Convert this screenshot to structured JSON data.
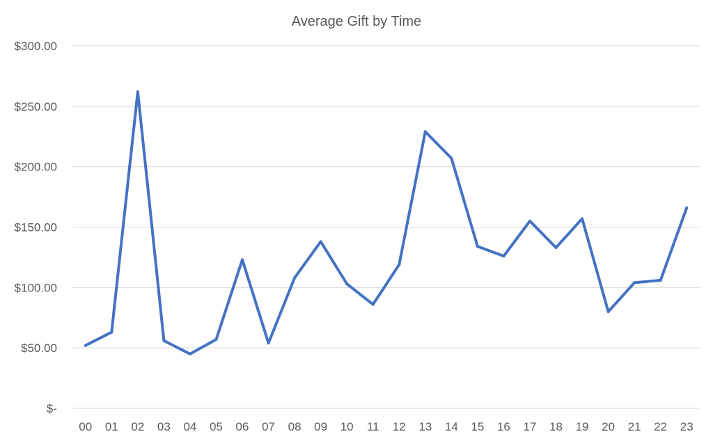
{
  "chart_data": {
    "type": "line",
    "title": "Average Gift by Time",
    "xlabel": "",
    "ylabel": "",
    "categories": [
      "00",
      "01",
      "02",
      "03",
      "04",
      "05",
      "06",
      "07",
      "08",
      "09",
      "10",
      "11",
      "12",
      "13",
      "14",
      "15",
      "16",
      "17",
      "18",
      "19",
      "20",
      "21",
      "22",
      "23"
    ],
    "series": [
      {
        "values": [
          52,
          63,
          262,
          56,
          45,
          57,
          123,
          54,
          108,
          138,
          103,
          86,
          119,
          229,
          207,
          134,
          126,
          155,
          133,
          157,
          80,
          104,
          106,
          166
        ]
      }
    ],
    "ylim": [
      0,
      300
    ],
    "y_ticks": [
      0,
      50,
      100,
      150,
      200,
      250,
      300
    ],
    "y_tick_labels": [
      "$-",
      "$50.00",
      "$100.00",
      "$150.00",
      "$200.00",
      "$250.00",
      "$300.00"
    ],
    "grid": true,
    "legend": "none",
    "line_color": "#4472c4"
  }
}
